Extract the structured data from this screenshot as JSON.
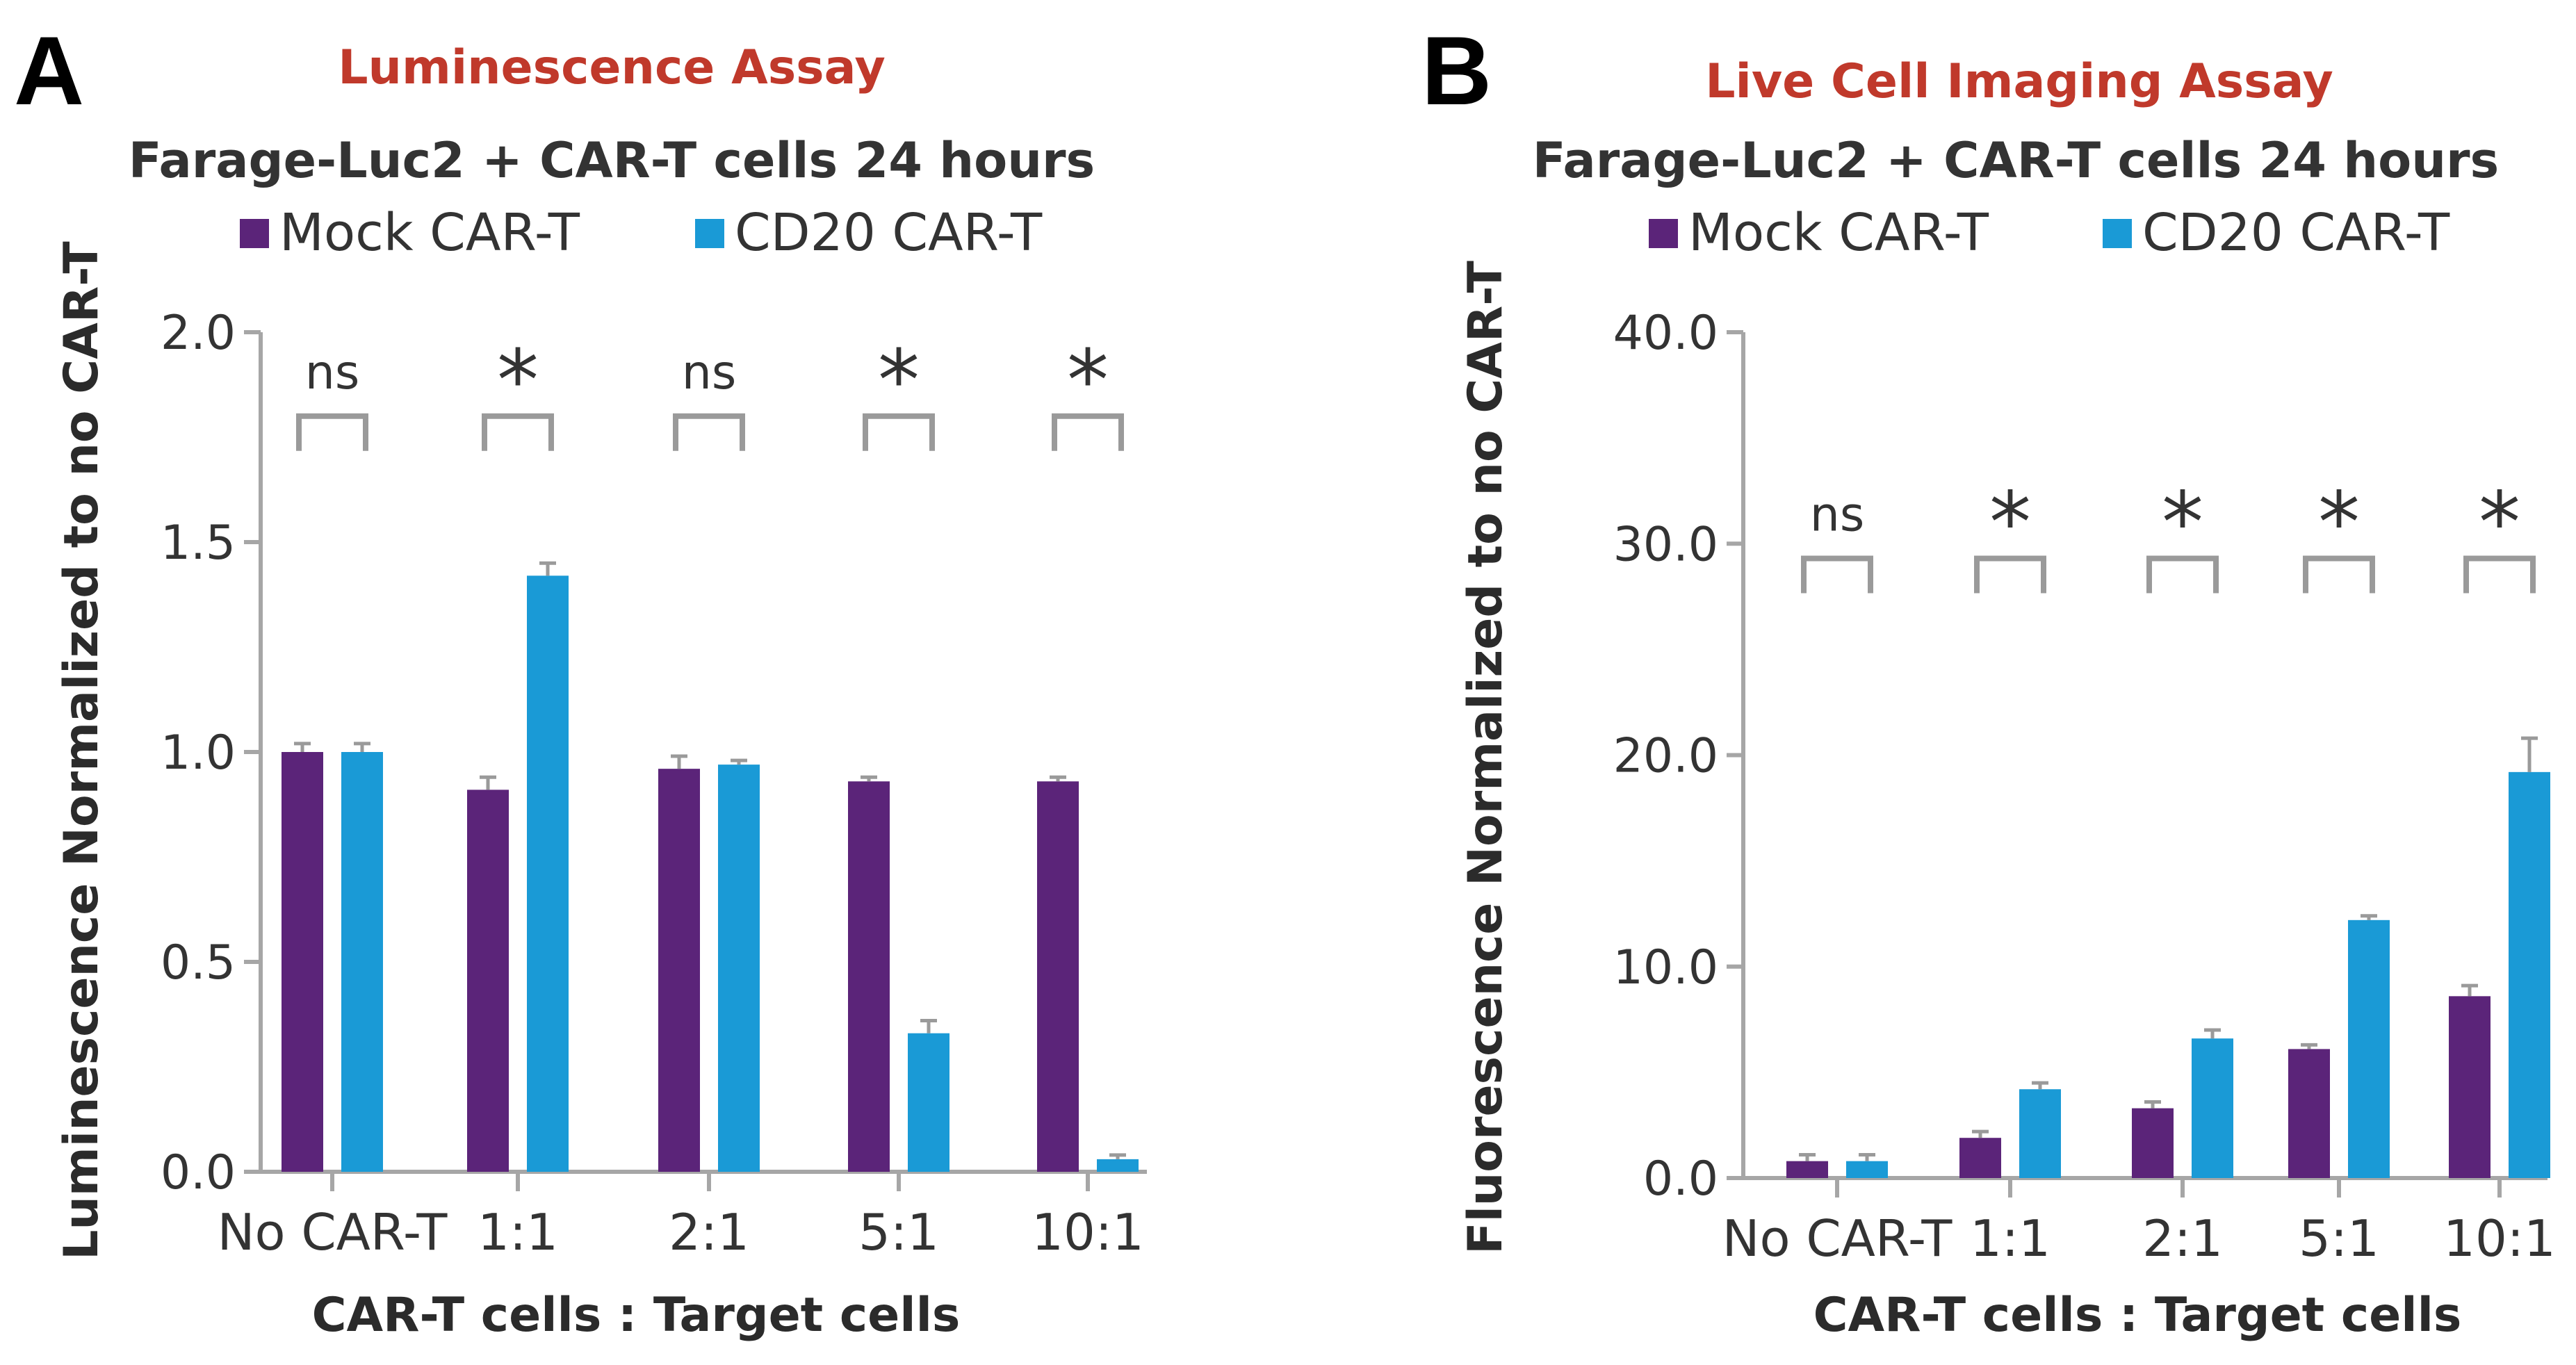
{
  "colors": {
    "mock": "#5b2479",
    "cd20": "#1a9ad6",
    "assay_title": "#c0392b",
    "axis": "#a6a6a6"
  },
  "chart_data": [
    {
      "type": "bar",
      "panel_letter": "A",
      "title": "Luminescence Assay",
      "subtitle": "Farage-Luc2 + CAR-T cells 24 hours",
      "xlabel": "CAR-T cells : Target cells",
      "ylabel": "Luminescence Normalized to no CAR-T",
      "categories": [
        "No CAR-T",
        "1:1",
        "2:1",
        "5:1",
        "10:1"
      ],
      "ylim": [
        0,
        2.0
      ],
      "yticks": [
        "0.0",
        "0.5",
        "1.0",
        "1.5",
        "2.0"
      ],
      "ytick_values": [
        0,
        0.5,
        1.0,
        1.5,
        2.0
      ],
      "legend": [
        "Mock CAR-T",
        "CD20 CAR-T"
      ],
      "legend_placement": "top",
      "series": [
        {
          "name": "Mock CAR-T",
          "values": [
            1.0,
            0.91,
            0.96,
            0.93,
            0.93
          ],
          "errors": [
            0.02,
            0.03,
            0.03,
            0.01,
            0.01
          ]
        },
        {
          "name": "CD20 CAR-T",
          "values": [
            1.0,
            1.42,
            0.97,
            0.33,
            0.03
          ],
          "errors": [
            0.02,
            0.03,
            0.01,
            0.03,
            0.01
          ]
        }
      ],
      "significance": [
        "ns",
        "*",
        "ns",
        "*",
        "*"
      ],
      "significance_y": 1.8
    },
    {
      "type": "bar",
      "panel_letter": "B",
      "title": "Live Cell Imaging Assay",
      "subtitle": "Farage-Luc2 + CAR-T cells 24 hours",
      "xlabel": "CAR-T cells : Target cells",
      "ylabel": "Fluorescence Normalized to no CAR-T",
      "categories": [
        "No CAR-T",
        "1:1",
        "2:1",
        "5:1",
        "10:1"
      ],
      "ylim": [
        0,
        40.0
      ],
      "yticks": [
        "0.0",
        "10.0",
        "20.0",
        "30.0",
        "40.0"
      ],
      "ytick_values": [
        0,
        10,
        20,
        30,
        40
      ],
      "legend": [
        "Mock CAR-T",
        "CD20 CAR-T"
      ],
      "legend_placement": "top",
      "series": [
        {
          "name": "Mock CAR-T",
          "values": [
            0.8,
            1.9,
            3.3,
            6.1,
            8.6
          ],
          "errors": [
            0.3,
            0.3,
            0.3,
            0.2,
            0.5
          ]
        },
        {
          "name": "CD20 CAR-T",
          "values": [
            0.8,
            4.2,
            6.6,
            12.2,
            19.2
          ],
          "errors": [
            0.3,
            0.3,
            0.4,
            0.2,
            1.6
          ]
        }
      ],
      "significance": [
        "ns",
        "*",
        "*",
        "*",
        "*"
      ],
      "significance_y": 29.3
    }
  ]
}
